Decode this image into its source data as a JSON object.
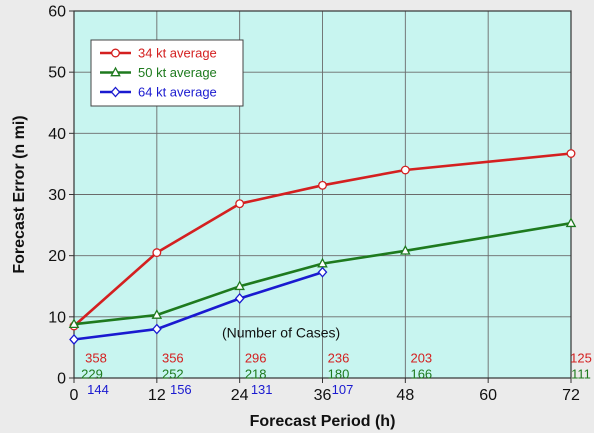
{
  "chart_data": {
    "type": "line",
    "xlabel": "Forecast Period (h)",
    "ylabel": "Forecast Error (n mi)",
    "xlim": [
      0,
      72
    ],
    "ylim": [
      0,
      60
    ],
    "xticks": [
      0,
      12,
      24,
      36,
      48,
      60,
      72
    ],
    "yticks": [
      0,
      10,
      20,
      30,
      40,
      50,
      60
    ],
    "grid": true,
    "legend_position": "top-left",
    "plot_background": "#c8f5f0",
    "series": [
      {
        "name": "34 kt average",
        "color": "#d42020",
        "marker": "circle",
        "x": [
          0,
          12,
          24,
          36,
          48,
          72
        ],
        "values": [
          8.5,
          20.5,
          28.5,
          31.5,
          34,
          36.7
        ]
      },
      {
        "name": "50 kt average",
        "color": "#1e7a1e",
        "marker": "triangle",
        "x": [
          0,
          12,
          24,
          36,
          48,
          72
        ],
        "values": [
          8.8,
          10.3,
          15,
          18.7,
          20.8,
          25.3
        ]
      },
      {
        "name": "64 kt average",
        "color": "#1a1ad0",
        "marker": "diamond",
        "x": [
          0,
          12,
          24,
          36
        ],
        "values": [
          6.3,
          8,
          13,
          17.3
        ]
      }
    ],
    "cases_title": "(Number of Cases)",
    "case_counts": [
      {
        "series": "34 kt average",
        "color": "#d42020",
        "x": [
          0,
          12,
          24,
          36,
          48,
          72
        ],
        "counts": [
          "358",
          "356",
          "296",
          "236",
          "203",
          "125"
        ]
      },
      {
        "series": "50 kt average",
        "color": "#1e7a1e",
        "x": [
          0,
          12,
          24,
          36,
          48,
          72
        ],
        "counts": [
          "229",
          "252",
          "218",
          "180",
          "166",
          "111"
        ]
      },
      {
        "series": "64 kt average",
        "color": "#1a1ad0",
        "x": [
          0,
          12,
          24,
          36
        ],
        "counts": [
          "144",
          "156",
          "131",
          "107"
        ]
      }
    ]
  }
}
